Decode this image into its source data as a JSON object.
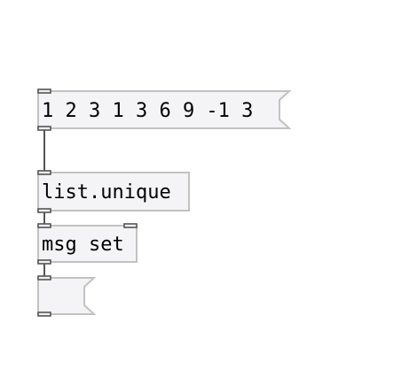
{
  "patch": {
    "list_message": {
      "text": "1 2 3 1 3 6 9 -1 3"
    },
    "list_unique_object": {
      "text": "list.unique"
    },
    "msg_set_object": {
      "text": "msg set"
    },
    "output_message": {
      "text": ""
    }
  }
}
